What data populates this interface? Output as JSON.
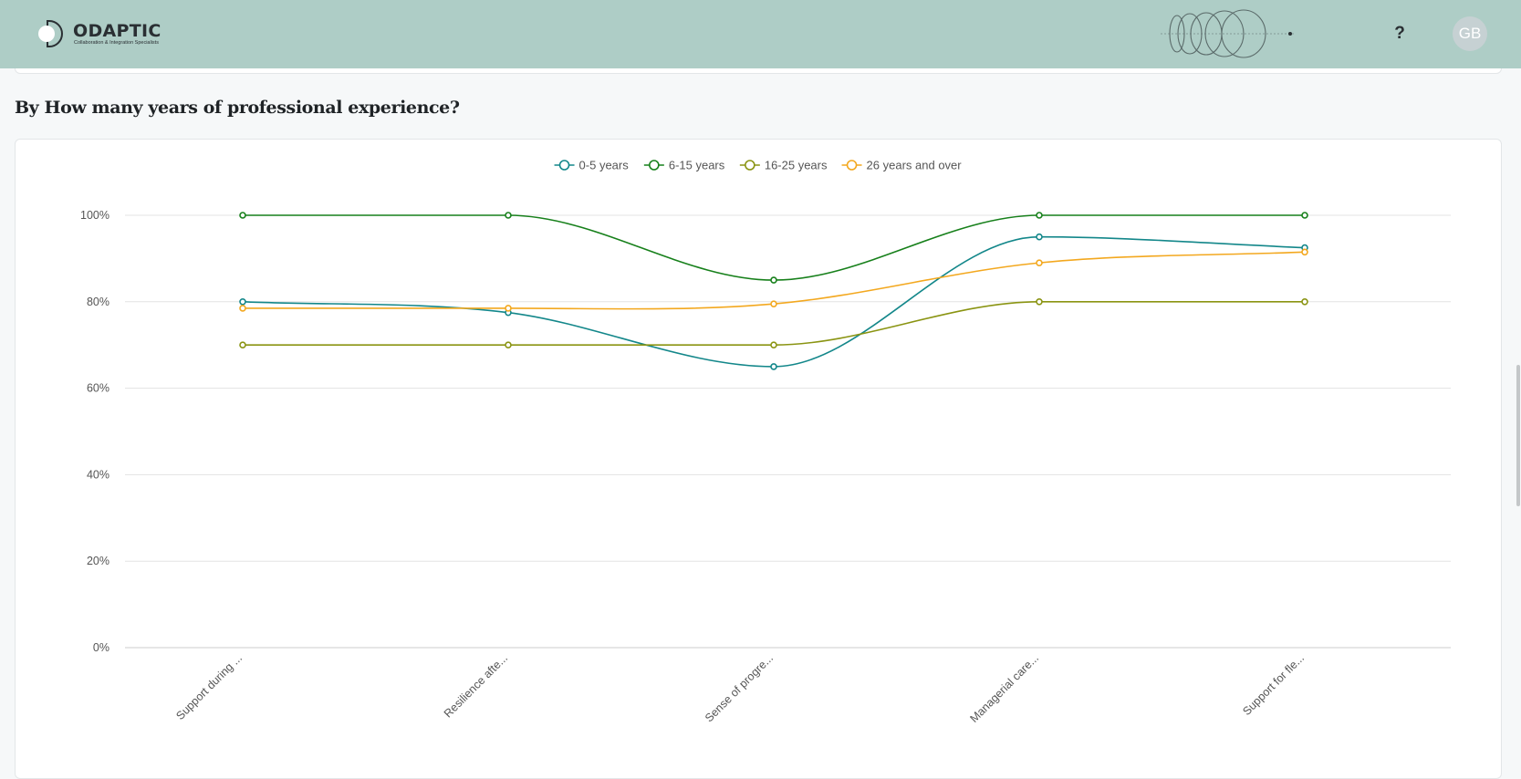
{
  "header": {
    "brand_name": "ODAPTIC",
    "brand_tagline": "Collaboration & Integration Specialists",
    "help_label": "?",
    "avatar_initials": "GB",
    "background_color": "#aecdc6"
  },
  "section": {
    "title": "By How many years of professional experience?"
  },
  "chart_data": {
    "type": "line",
    "smooth": true,
    "categories": [
      "Support during ...",
      "Resilience afte...",
      "Sense of progre...",
      "Managerial care...",
      "Support for fle..."
    ],
    "series": [
      {
        "name": "0-5 years",
        "color": "#13878a",
        "values": [
          80,
          77.5,
          65,
          95,
          92.5
        ]
      },
      {
        "name": "6-15 years",
        "color": "#17801b",
        "values": [
          100,
          100,
          85,
          100,
          100
        ]
      },
      {
        "name": "16-25 years",
        "color": "#8a9412",
        "values": [
          70,
          70,
          70,
          80,
          80
        ]
      },
      {
        "name": "26 years and over",
        "color": "#f3a81f",
        "values": [
          78.5,
          78.5,
          79.5,
          89,
          91.5
        ]
      }
    ],
    "yticks": [
      "0%",
      "20%",
      "40%",
      "60%",
      "80%",
      "100%"
    ],
    "ylim": [
      0,
      100
    ],
    "grid": true,
    "legend_position": "top-center",
    "xlabel": "",
    "ylabel": ""
  }
}
